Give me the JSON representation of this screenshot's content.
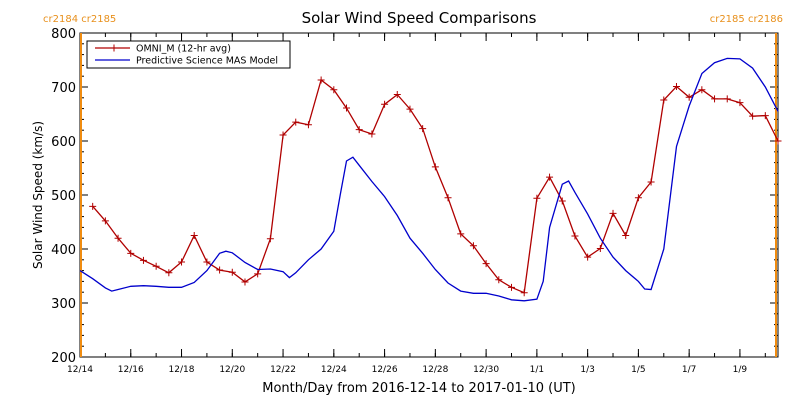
{
  "chart_data": {
    "type": "line",
    "title": "Solar Wind Speed Comparisons",
    "xlabel": "Month/Day from 2016-12-14 to 2017-01-10 (UT)",
    "ylabel": "Solar Wind Speed (km/s)",
    "xlim": [
      "2016-12-14T00:00",
      "2017-01-10T12:00"
    ],
    "ylim": [
      200,
      800
    ],
    "grid": false,
    "legend_position": "top-left",
    "x_ticks": [
      {
        "date": "2016-12-14",
        "label": "12/14"
      },
      {
        "date": "2016-12-16",
        "label": "12/16"
      },
      {
        "date": "2016-12-18",
        "label": "12/18"
      },
      {
        "date": "2016-12-20",
        "label": "12/20"
      },
      {
        "date": "2016-12-22",
        "label": "12/22"
      },
      {
        "date": "2016-12-24",
        "label": "12/24"
      },
      {
        "date": "2016-12-26",
        "label": "12/26"
      },
      {
        "date": "2016-12-28",
        "label": "12/28"
      },
      {
        "date": "2016-12-30",
        "label": "12/30"
      },
      {
        "date": "2017-01-01",
        "label": "1/1"
      },
      {
        "date": "2017-01-03",
        "label": "1/3"
      },
      {
        "date": "2017-01-05",
        "label": "1/5"
      },
      {
        "date": "2017-01-07",
        "label": "1/7"
      },
      {
        "date": "2017-01-09",
        "label": "1/9"
      }
    ],
    "y_ticks": [
      200,
      300,
      400,
      500,
      600,
      700,
      800
    ],
    "carrington_labels": {
      "left": "cr2184 cr2185",
      "right": "cr2185 cr2186"
    },
    "carrington_markers": [
      "2016-12-14T00:00",
      "2017-01-10T12:00"
    ],
    "colors": {
      "omni": "#b00000",
      "model": "#0000cc",
      "carrington": "#f08c10"
    },
    "series": [
      {
        "name": "OMNI_M (12-hr avg)",
        "color": "#b00000",
        "marker": "plus",
        "points": [
          [
            "2016-12-14T12:00",
            479
          ],
          [
            "2016-12-15T00:00",
            452
          ],
          [
            "2016-12-15T12:00",
            420
          ],
          [
            "2016-12-16T00:00",
            392
          ],
          [
            "2016-12-16T12:00",
            379
          ],
          [
            "2016-12-17T00:00",
            368
          ],
          [
            "2016-12-17T12:00",
            356
          ],
          [
            "2016-12-18T00:00",
            376
          ],
          [
            "2016-12-18T12:00",
            425
          ],
          [
            "2016-12-19T00:00",
            376
          ],
          [
            "2016-12-19T12:00",
            361
          ],
          [
            "2016-12-20T00:00",
            357
          ],
          [
            "2016-12-20T12:00",
            339
          ],
          [
            "2016-12-21T00:00",
            354
          ],
          [
            "2016-12-21T12:00",
            419
          ],
          [
            "2016-12-22T00:00",
            611
          ],
          [
            "2016-12-22T12:00",
            635
          ],
          [
            "2016-12-23T00:00",
            630
          ],
          [
            "2016-12-23T12:00",
            713
          ],
          [
            "2016-12-24T00:00",
            695
          ],
          [
            "2016-12-24T12:00",
            661
          ],
          [
            "2016-12-25T00:00",
            621
          ],
          [
            "2016-12-25T12:00",
            613
          ],
          [
            "2016-12-26T00:00",
            668
          ],
          [
            "2016-12-26T12:00",
            686
          ],
          [
            "2016-12-27T00:00",
            659
          ],
          [
            "2016-12-27T12:00",
            623
          ],
          [
            "2016-12-28T00:00",
            552
          ],
          [
            "2016-12-28T12:00",
            495
          ],
          [
            "2016-12-29T00:00",
            428
          ],
          [
            "2016-12-29T12:00",
            406
          ],
          [
            "2016-12-30T00:00",
            373
          ],
          [
            "2016-12-30T12:00",
            343
          ],
          [
            "2016-12-31T00:00",
            329
          ],
          [
            "2016-12-31T12:00",
            319
          ],
          [
            "2017-01-01T00:00",
            494
          ],
          [
            "2017-01-01T12:00",
            533
          ],
          [
            "2017-01-02T00:00",
            489
          ],
          [
            "2017-01-02T12:00",
            424
          ],
          [
            "2017-01-03T00:00",
            385
          ],
          [
            "2017-01-03T12:00",
            401
          ],
          [
            "2017-01-04T00:00",
            466
          ],
          [
            "2017-01-04T12:00",
            425
          ],
          [
            "2017-01-05T00:00",
            495
          ],
          [
            "2017-01-05T12:00",
            524
          ],
          [
            "2017-01-06T00:00",
            676
          ],
          [
            "2017-01-06T12:00",
            701
          ],
          [
            "2017-01-07T00:00",
            681
          ],
          [
            "2017-01-07T12:00",
            695
          ],
          [
            "2017-01-08T00:00",
            678
          ],
          [
            "2017-01-08T12:00",
            678
          ],
          [
            "2017-01-09T00:00",
            671
          ],
          [
            "2017-01-09T12:00",
            646
          ],
          [
            "2017-01-10T00:00",
            647
          ],
          [
            "2017-01-10T12:00",
            600
          ]
        ]
      },
      {
        "name": "Predictive Science MAS Model",
        "color": "#0000cc",
        "marker": "none",
        "points": [
          [
            "2016-12-14T00:00",
            360
          ],
          [
            "2016-12-14T12:00",
            345
          ],
          [
            "2016-12-15T00:00",
            328
          ],
          [
            "2016-12-15T06:00",
            322
          ],
          [
            "2016-12-15T12:00",
            325
          ],
          [
            "2016-12-16T00:00",
            331
          ],
          [
            "2016-12-16T12:00",
            332
          ],
          [
            "2016-12-17T00:00",
            331
          ],
          [
            "2016-12-17T12:00",
            329
          ],
          [
            "2016-12-18T00:00",
            329
          ],
          [
            "2016-12-18T12:00",
            338
          ],
          [
            "2016-12-19T00:00",
            360
          ],
          [
            "2016-12-19T12:00",
            392
          ],
          [
            "2016-12-19T18:00",
            396
          ],
          [
            "2016-12-20T00:00",
            393
          ],
          [
            "2016-12-20T12:00",
            375
          ],
          [
            "2016-12-21T00:00",
            362
          ],
          [
            "2016-12-21T12:00",
            363
          ],
          [
            "2016-12-22T00:00",
            358
          ],
          [
            "2016-12-22T06:00",
            347
          ],
          [
            "2016-12-22T12:00",
            356
          ],
          [
            "2016-12-23T00:00",
            380
          ],
          [
            "2016-12-23T12:00",
            400
          ],
          [
            "2016-12-24T00:00",
            433
          ],
          [
            "2016-12-24T06:00",
            500
          ],
          [
            "2016-12-24T12:00",
            563
          ],
          [
            "2016-12-24T18:00",
            570
          ],
          [
            "2016-12-25T00:00",
            555
          ],
          [
            "2016-12-25T12:00",
            525
          ],
          [
            "2016-12-26T00:00",
            497
          ],
          [
            "2016-12-26T12:00",
            462
          ],
          [
            "2016-12-27T00:00",
            420
          ],
          [
            "2016-12-27T12:00",
            392
          ],
          [
            "2016-12-28T00:00",
            362
          ],
          [
            "2016-12-28T12:00",
            337
          ],
          [
            "2016-12-29T00:00",
            322
          ],
          [
            "2016-12-29T12:00",
            318
          ],
          [
            "2016-12-30T00:00",
            318
          ],
          [
            "2016-12-30T12:00",
            313
          ],
          [
            "2016-12-31T00:00",
            306
          ],
          [
            "2016-12-31T12:00",
            304
          ],
          [
            "2017-01-01T00:00",
            307
          ],
          [
            "2017-01-01T06:00",
            340
          ],
          [
            "2017-01-01T12:00",
            440
          ],
          [
            "2017-01-02T00:00",
            520
          ],
          [
            "2017-01-02T06:00",
            526
          ],
          [
            "2017-01-02T12:00",
            505
          ],
          [
            "2017-01-03T00:00",
            465
          ],
          [
            "2017-01-03T12:00",
            420
          ],
          [
            "2017-01-04T00:00",
            385
          ],
          [
            "2017-01-04T12:00",
            360
          ],
          [
            "2017-01-05T00:00",
            340
          ],
          [
            "2017-01-05T06:00",
            326
          ],
          [
            "2017-01-05T12:00",
            325
          ],
          [
            "2017-01-06T00:00",
            400
          ],
          [
            "2017-01-06T12:00",
            590
          ],
          [
            "2017-01-07T00:00",
            665
          ],
          [
            "2017-01-07T12:00",
            725
          ],
          [
            "2017-01-08T00:00",
            745
          ],
          [
            "2017-01-08T12:00",
            753
          ],
          [
            "2017-01-09T00:00",
            752
          ],
          [
            "2017-01-09T12:00",
            735
          ],
          [
            "2017-01-10T00:00",
            700
          ],
          [
            "2017-01-10T12:00",
            655
          ]
        ]
      }
    ]
  }
}
